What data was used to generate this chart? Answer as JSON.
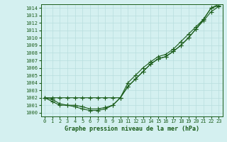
{
  "xlabel": "Graphe pression niveau de la mer (hPa)",
  "ylim": [
    999.5,
    1014.5
  ],
  "xlim": [
    -0.5,
    23.5
  ],
  "yticks": [
    1000,
    1001,
    1002,
    1003,
    1004,
    1005,
    1006,
    1007,
    1008,
    1009,
    1010,
    1011,
    1012,
    1013,
    1014
  ],
  "xticks": [
    0,
    1,
    2,
    3,
    4,
    5,
    6,
    7,
    8,
    9,
    10,
    11,
    12,
    13,
    14,
    15,
    16,
    17,
    18,
    19,
    20,
    21,
    22,
    23
  ],
  "line_color": "#1a5c1a",
  "bg_color": "#d4f0f0",
  "grid_color": "#b8dede",
  "line1": [
    1002.0,
    1002.0,
    1002.0,
    1002.0,
    1002.0,
    1002.0,
    1002.0,
    1002.0,
    1002.0,
    1002.0,
    1002.0,
    1003.5,
    1004.5,
    1005.5,
    1006.5,
    1007.2,
    1007.5,
    1008.2,
    1009.0,
    1010.0,
    1011.2,
    1012.5,
    1014.0,
    1014.3
  ],
  "line2": [
    1002.0,
    1001.8,
    1001.2,
    1001.0,
    1001.0,
    1000.8,
    1000.5,
    1000.5,
    1000.7,
    1001.0,
    1002.0,
    1003.5,
    1004.5,
    1005.5,
    1006.5,
    1007.2,
    1007.5,
    1008.2,
    1009.0,
    1010.0,
    1011.2,
    1012.3,
    1013.5,
    1014.2
  ],
  "line3": [
    1002.0,
    1001.5,
    1001.0,
    1001.0,
    1000.8,
    1000.5,
    1000.3,
    1000.3,
    1000.5,
    1001.0,
    1002.0,
    1004.0,
    1005.0,
    1006.0,
    1006.8,
    1007.5,
    1007.8,
    1008.5,
    1009.5,
    1010.5,
    1011.5,
    1012.5,
    1014.0,
    1014.5
  ],
  "marker": "+",
  "markersize": 4,
  "linewidth": 0.8,
  "tick_fontsize": 5.0,
  "xlabel_fontsize": 6.0
}
